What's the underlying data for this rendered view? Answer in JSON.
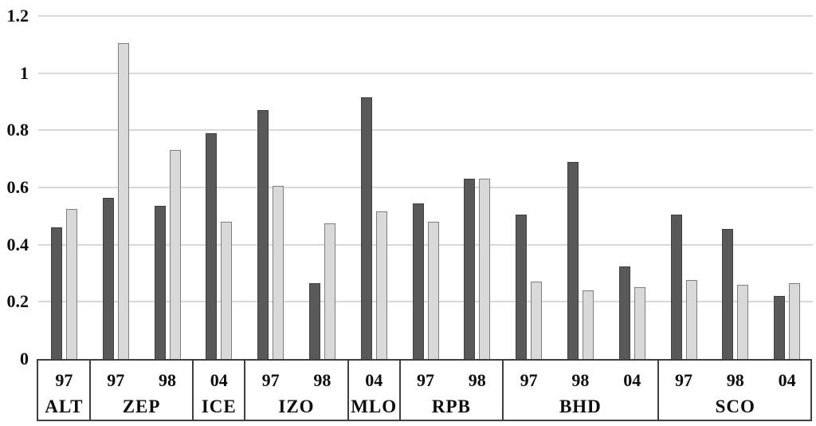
{
  "chart_data": {
    "type": "bar",
    "title": "",
    "xlabel": "",
    "ylabel": "",
    "ylim": [
      0,
      1.2
    ],
    "yticks": [
      0,
      0.2,
      0.4,
      0.6,
      0.8,
      1,
      1.2
    ],
    "ytick_labels": [
      "0",
      "0.2",
      "0.4",
      "0.6",
      "0.8",
      "1",
      "1.2"
    ],
    "grid": true,
    "legend_position": "none",
    "colors": {
      "dark_fill": "#595959",
      "dark_border": "#3f3f3f",
      "light_fill": "#d9d9d9",
      "light_border": "#7f7f7f",
      "gridline": "#d9d9d9",
      "axis": "#3f3f3f",
      "text": "#0d0d0d"
    },
    "series": [
      {
        "name": "dark-gray-series",
        "color": "#595959",
        "values": [
          0.46,
          0.565,
          0.535,
          0.79,
          0.87,
          0.265,
          0.915,
          0.545,
          0.63,
          0.505,
          0.69,
          0.325,
          0.505,
          0.455,
          0.22
        ]
      },
      {
        "name": "light-gray-series",
        "color": "#d9d9d9",
        "values": [
          0.525,
          1.105,
          0.73,
          0.48,
          0.605,
          0.475,
          0.515,
          0.48,
          0.63,
          0.27,
          0.24,
          0.25,
          0.275,
          0.26,
          0.265
        ]
      }
    ],
    "slot_year_labels": [
      "97",
      "97",
      "98",
      "04",
      "97",
      "98",
      "04",
      "97",
      "98",
      "97",
      "98",
      "04",
      "97",
      "98",
      "04"
    ],
    "groups": [
      {
        "station": "ALT",
        "bars": [
          {
            "year": "97",
            "dark": 0.46,
            "light": 0.525
          }
        ]
      },
      {
        "station": "ZEP",
        "bars": [
          {
            "year": "97",
            "dark": 0.565,
            "light": 1.105
          },
          {
            "year": "98",
            "dark": 0.535,
            "light": 0.73
          }
        ]
      },
      {
        "station": "ICE",
        "bars": [
          {
            "year": "04",
            "dark": 0.79,
            "light": 0.48
          }
        ]
      },
      {
        "station": "IZO",
        "bars": [
          {
            "year": "97",
            "dark": 0.87,
            "light": 0.605
          },
          {
            "year": "98",
            "dark": 0.265,
            "light": 0.475
          }
        ]
      },
      {
        "station": "MLO",
        "bars": [
          {
            "year": "04",
            "dark": 0.915,
            "light": 0.515
          }
        ]
      },
      {
        "station": "RPB",
        "bars": [
          {
            "year": "97",
            "dark": 0.545,
            "light": 0.48
          },
          {
            "year": "98",
            "dark": 0.63,
            "light": 0.63
          }
        ]
      },
      {
        "station": "BHD",
        "bars": [
          {
            "year": "97",
            "dark": 0.505,
            "light": 0.27
          },
          {
            "year": "98",
            "dark": 0.69,
            "light": 0.24
          },
          {
            "year": "04",
            "dark": 0.325,
            "light": 0.25
          }
        ]
      },
      {
        "station": "SCO",
        "bars": [
          {
            "year": "97",
            "dark": 0.505,
            "light": 0.275
          },
          {
            "year": "98",
            "dark": 0.455,
            "light": 0.26
          },
          {
            "year": "04",
            "dark": 0.22,
            "light": 0.265
          }
        ]
      }
    ]
  }
}
